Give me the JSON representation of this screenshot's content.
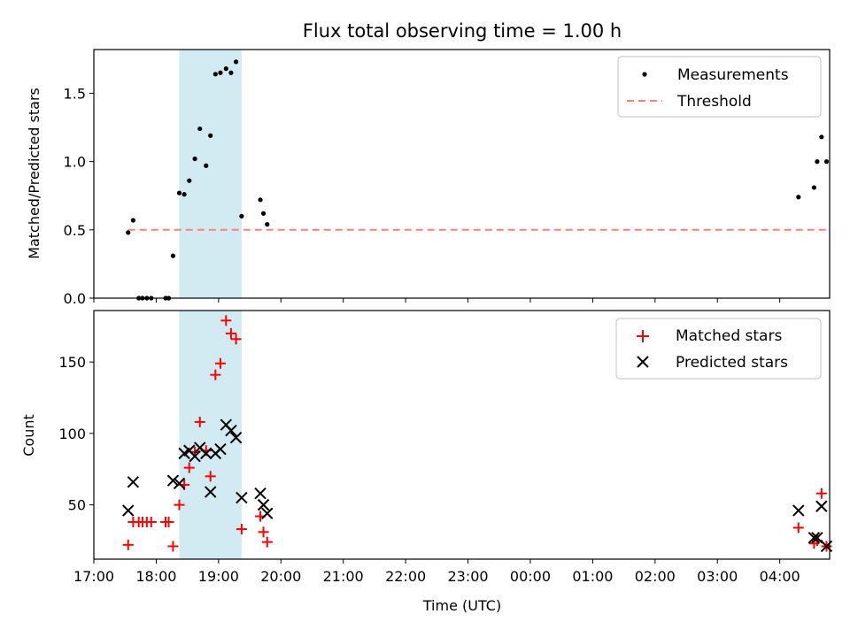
{
  "chart_data": {
    "title": "Flux total observing time = 1.00 h",
    "xlabel": "Time (UTC)",
    "x_tick_labels": [
      "17:00",
      "18:00",
      "19:00",
      "20:00",
      "21:00",
      "22:00",
      "23:00",
      "00:00",
      "01:00",
      "02:00",
      "03:00",
      "04:00"
    ],
    "x_range_hours": [
      17.0,
      28.8
    ],
    "highlight_span_hours": [
      18.37,
      19.37
    ],
    "highlight_color": "#add8e6",
    "panels": [
      {
        "type": "scatter",
        "ylabel": "Matched/Predicted stars",
        "ylim": [
          0.0,
          1.82
        ],
        "y_ticks": [
          0.0,
          0.5,
          1.0,
          1.5
        ],
        "y_tick_labels": [
          "0.0",
          "0.5",
          "1.0",
          "1.5"
        ],
        "series": [
          {
            "name": "Measurements",
            "color": "#000000",
            "marker": "dot",
            "x": [
              17.55,
              17.63,
              17.72,
              17.78,
              17.85,
              17.92,
              18.15,
              18.2,
              18.27,
              18.37,
              18.45,
              18.53,
              18.62,
              18.7,
              18.8,
              18.87,
              18.95,
              19.03,
              19.12,
              19.2,
              19.28,
              19.37,
              19.67,
              19.72,
              19.78,
              28.3,
              28.55,
              28.6,
              28.67,
              28.75
            ],
            "y": [
              0.48,
              0.57,
              0.0,
              0.0,
              0.0,
              0.0,
              0.0,
              0.0,
              0.31,
              0.77,
              0.76,
              0.86,
              1.02,
              1.24,
              0.97,
              1.19,
              1.64,
              1.65,
              1.68,
              1.65,
              1.73,
              0.6,
              0.72,
              0.62,
              0.54,
              0.74,
              0.81,
              1.0,
              1.18,
              1.0
            ]
          },
          {
            "name": "Threshold",
            "color": "#ff7f7f",
            "style": "dashed",
            "x": [
              17.55,
              28.75
            ],
            "y": [
              0.5,
              0.5
            ]
          }
        ],
        "legend_position": "top-right"
      },
      {
        "type": "scatter",
        "ylabel": "Count",
        "ylim": [
          12,
          186
        ],
        "y_ticks": [
          50,
          100,
          150
        ],
        "y_tick_labels": [
          "50",
          "100",
          "150"
        ],
        "series": [
          {
            "name": "Matched stars",
            "color": "#ff0000",
            "marker": "plus",
            "x": [
              17.55,
              17.63,
              17.72,
              17.78,
              17.85,
              17.92,
              18.15,
              18.2,
              18.27,
              18.37,
              18.45,
              18.53,
              18.62,
              18.7,
              18.8,
              18.87,
              18.95,
              19.03,
              19.12,
              19.2,
              19.28,
              19.37,
              19.67,
              19.72,
              19.78,
              28.3,
              28.55,
              28.6,
              28.67,
              28.75
            ],
            "y": [
              22,
              38,
              38,
              38,
              38,
              38,
              38,
              38,
              21,
              50,
              64,
              76,
              87,
              108,
              88,
              70,
              141,
              149,
              179,
              170,
              166,
              33,
              42,
              31,
              24,
              34,
              23,
              25,
              58,
              21
            ]
          },
          {
            "name": "Predicted stars",
            "color": "#000000",
            "marker": "x",
            "x": [
              17.55,
              17.63,
              18.27,
              18.37,
              18.45,
              18.53,
              18.62,
              18.7,
              18.8,
              18.87,
              18.95,
              19.03,
              19.12,
              19.2,
              19.28,
              19.37,
              19.67,
              19.72,
              19.78,
              28.3,
              28.55,
              28.6,
              28.67,
              28.75
            ],
            "y": [
              46,
              66,
              67,
              65,
              86,
              88,
              84,
              90,
              86,
              59,
              86,
              89,
              106,
              102,
              97,
              55,
              58,
              50,
              44,
              46,
              27,
              27,
              49,
              21
            ]
          }
        ],
        "legend_position": "top-right"
      }
    ]
  }
}
